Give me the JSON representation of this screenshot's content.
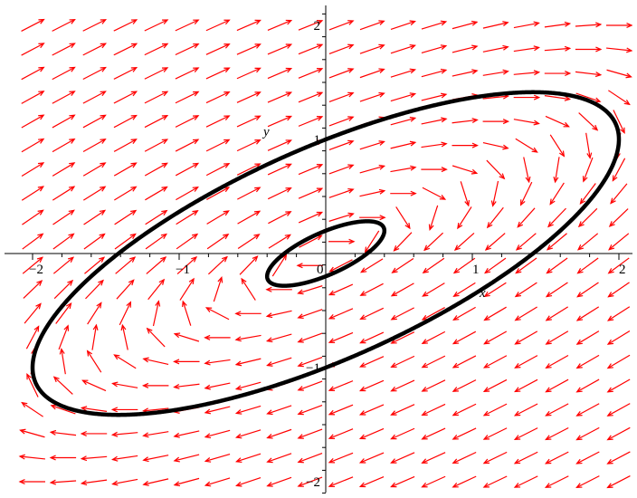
{
  "chart_data": {
    "type": "vector-field-phase-portrait",
    "xlabel": "x",
    "ylabel": "y",
    "xlim": [
      -2.2,
      2.1
    ],
    "ylim": [
      -2.1,
      2.1
    ],
    "x_ticks": [
      {
        "value": -2,
        "label": "−2"
      },
      {
        "value": -1,
        "label": "−1"
      },
      {
        "value": 0,
        "label": "0"
      },
      {
        "value": 1,
        "label": "1"
      },
      {
        "value": 2,
        "label": "2"
      }
    ],
    "y_ticks": [
      {
        "value": -2,
        "label": "−2"
      },
      {
        "value": -1,
        "label": "−1"
      },
      {
        "value": 1,
        "label": "1"
      },
      {
        "value": 2,
        "label": "2"
      }
    ],
    "field": {
      "equations": {
        "dx_dt": "-x + 2*y",
        "dy_dt": "-x + y"
      },
      "grid_x_range": [
        -2.0,
        2.0
      ],
      "grid_y_range": [
        -2.0,
        2.0
      ],
      "grid_count": 20,
      "color": "#ff0000"
    },
    "trajectories": [
      {
        "name": "",
        "x0": 0.0,
        "y0": 1.0,
        "color": "#000000"
      },
      {
        "name": "",
        "x0": 0.0,
        "y0": 0.2,
        "color": "#000000"
      }
    ],
    "grid": false
  }
}
